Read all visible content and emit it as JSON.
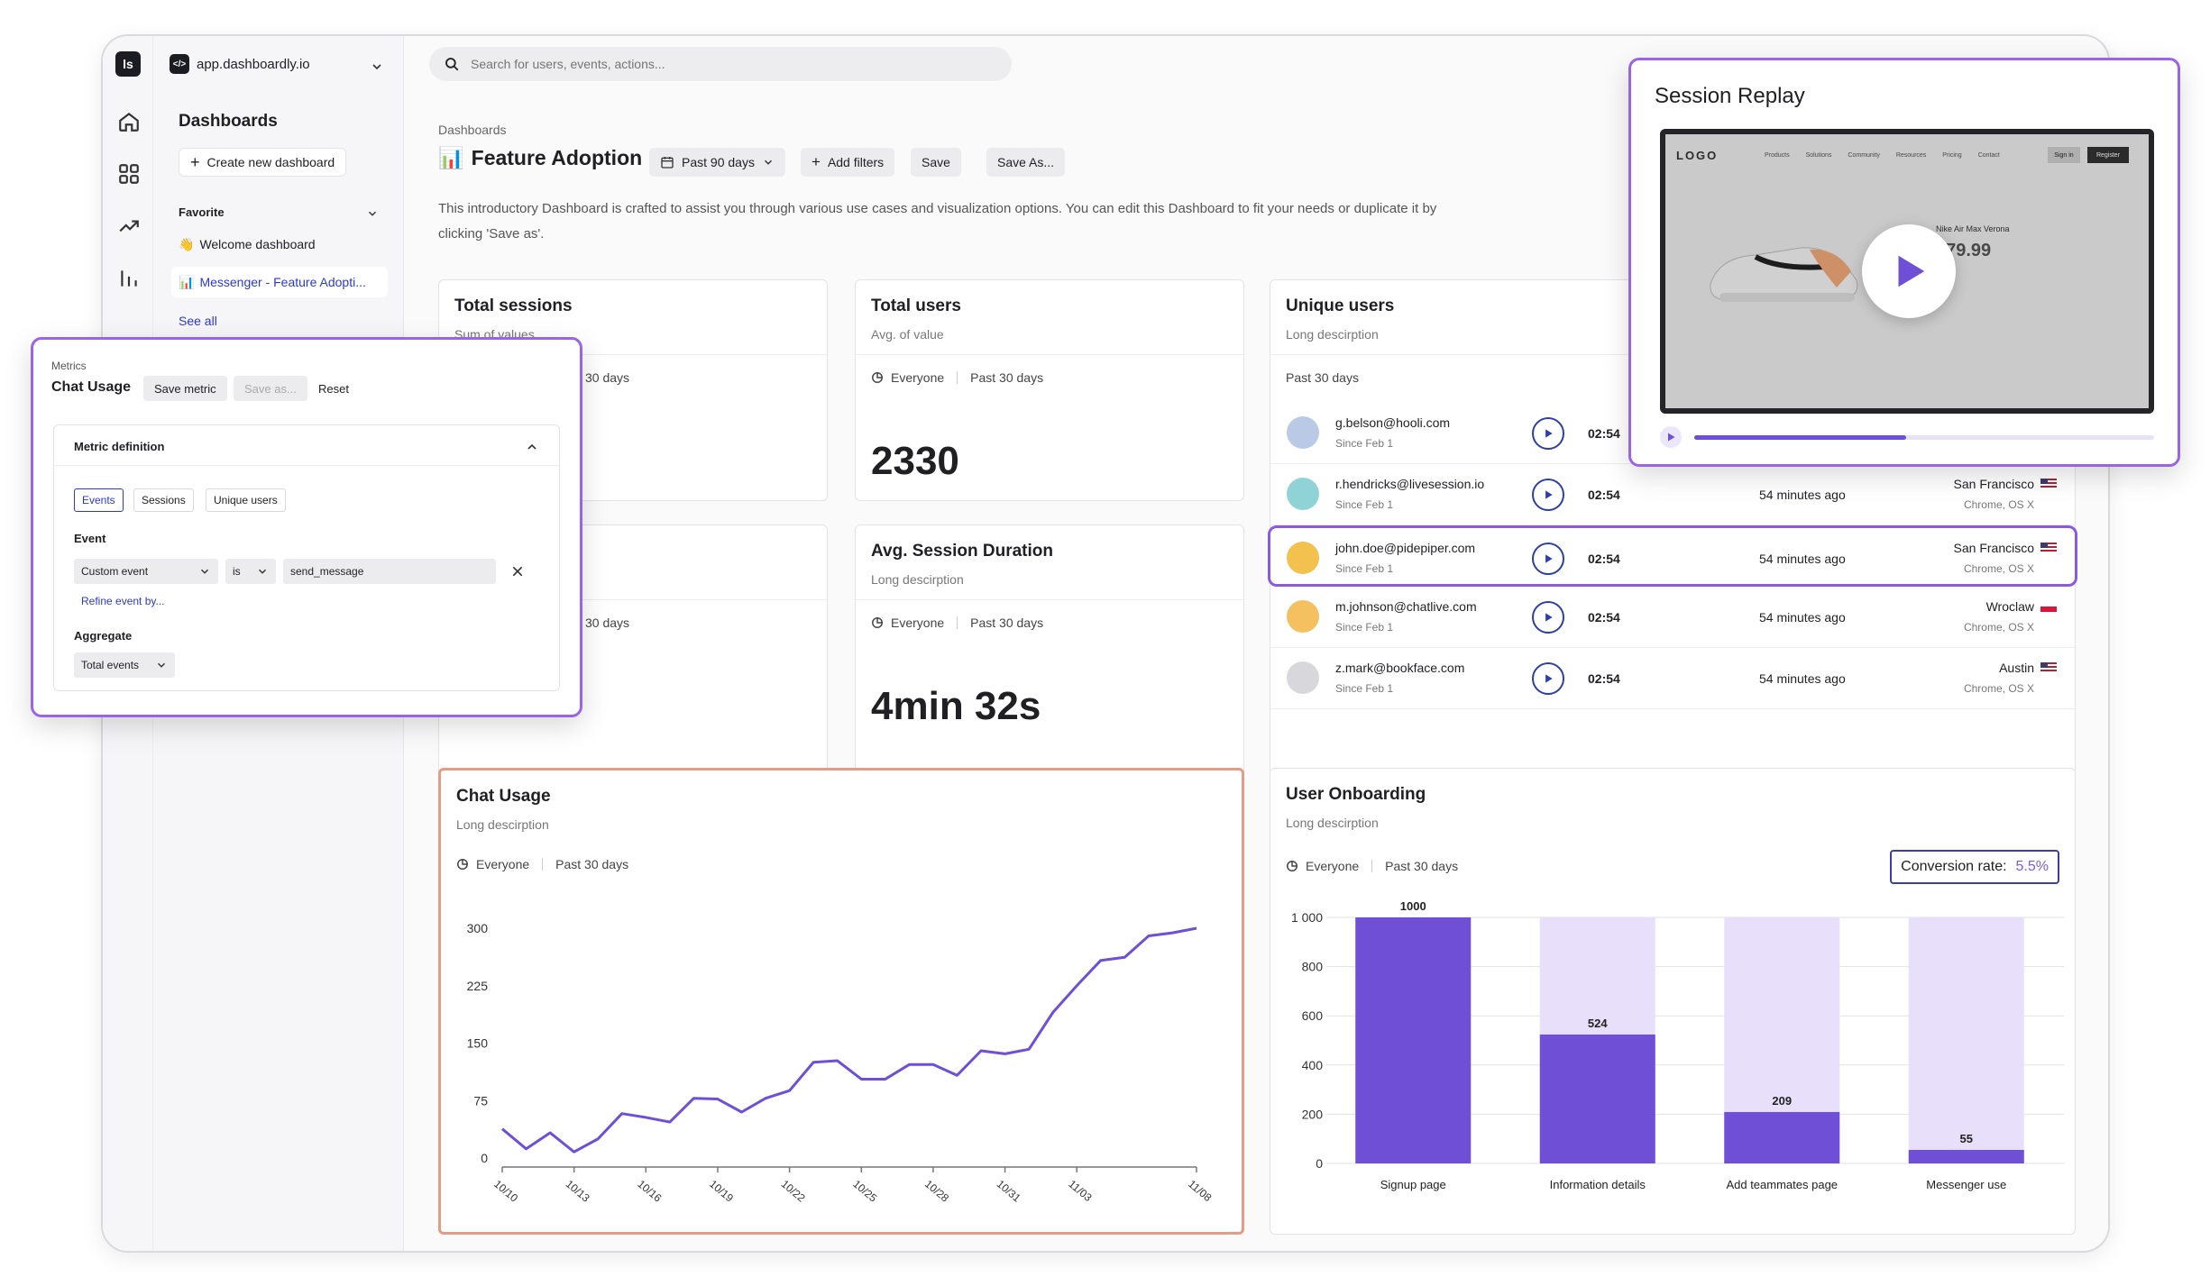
{
  "app": {
    "workspace": "app.dashboardly.io",
    "rail_logo": "ls",
    "search_placeholder": "Search for users, events, actions..."
  },
  "sidenav": {
    "title": "Dashboards",
    "create_label": "Create new dashboard",
    "favorite_label": "Favorite",
    "items": [
      {
        "emoji": "👋",
        "label": "Welcome dashboard"
      },
      {
        "emoji": "📊",
        "label": "Messenger - Feature Adopti..."
      }
    ],
    "see_all": "See all"
  },
  "page": {
    "breadcrumb": "Dashboards",
    "title_emoji": "📊",
    "title": "Feature Adoption",
    "period": "Past 90 days",
    "add_filters": "Add filters",
    "save": "Save",
    "save_as": "Save As...",
    "intro": "This introductory Dashboard is crafted to assist you through various use cases and visualization options. You can edit this Dashboard to fit your needs or duplicate it by clicking 'Save as'."
  },
  "cards": {
    "total_sessions": {
      "title": "Total sessions",
      "sub": "Sum of values",
      "period": "30 days"
    },
    "total_users": {
      "title": "Total users",
      "sub": "Avg. of value",
      "segment": "Everyone",
      "period": "Past 30 days",
      "value": "2330"
    },
    "card_left_2": {
      "period": "30 days"
    },
    "avg_session": {
      "title": "Avg. Session Duration",
      "sub": "Long descirption",
      "segment": "Everyone",
      "period": "Past 30 days",
      "value": "4min 32s"
    },
    "unique_users": {
      "title": "Unique users",
      "sub": "Long descirption",
      "period": "Past 30 days"
    },
    "chat_usage": {
      "title": "Chat Usage",
      "sub": "Long descirption",
      "segment": "Everyone",
      "period": "Past 30 days"
    },
    "onboarding": {
      "title": "User Onboarding",
      "sub": "Long descirption",
      "segment": "Everyone",
      "period": "Past 30 days",
      "conv_label": "Conversion rate:",
      "conv_value": "5.5%"
    }
  },
  "users": [
    {
      "email": "g.belson@hooli.com",
      "since": "Since Feb 1",
      "duration": "02:54",
      "ago": "",
      "location": "",
      "browser": "",
      "flag": "",
      "avatar_color": "#b9c9e6"
    },
    {
      "email": "r.hendricks@livesession.io",
      "since": "Since Feb 1",
      "duration": "02:54",
      "ago": "54 minutes ago",
      "location": "San Francisco",
      "browser": "Chrome, OS X",
      "flag": "us",
      "avatar_color": "#8fd3d6"
    },
    {
      "email": "john.doe@pidepiper.com",
      "since": "Since Feb 1",
      "duration": "02:54",
      "ago": "54 minutes ago",
      "location": "San Francisco",
      "browser": "Chrome, OS X",
      "flag": "us",
      "avatar_color": "#f2c14e"
    },
    {
      "email": "m.johnson@chatlive.com",
      "since": "Since Feb 1",
      "duration": "02:54",
      "ago": "54 minutes ago",
      "location": "Wroclaw",
      "browser": "Chrome, OS X",
      "flag": "pl",
      "avatar_color": "#f5c060"
    },
    {
      "email": "z.mark@bookface.com",
      "since": "Since Feb 1",
      "duration": "02:54",
      "ago": "54 minutes ago",
      "location": "Austin",
      "browser": "Chrome, OS X",
      "flag": "us",
      "avatar_color": "#d8d8dc"
    }
  ],
  "metrics_panel": {
    "label": "Metrics",
    "title": "Chat Usage",
    "save_metric": "Save metric",
    "save_as": "Save as...",
    "reset": "Reset",
    "definition": "Metric definition",
    "tabs": [
      "Events",
      "Sessions",
      "Unique users"
    ],
    "event_label": "Event",
    "event_type": "Custom event",
    "operator": "is",
    "event_value": "send_message",
    "refine": "Refine event by...",
    "aggregate_label": "Aggregate",
    "aggregate_value": "Total events"
  },
  "replay": {
    "title": "Session Replay",
    "site_logo": "LOGO",
    "site_nav": [
      "Products",
      "Solutions",
      "Community",
      "Resources",
      "Pricing",
      "Contact"
    ],
    "site_signin": "Sign in",
    "site_register": "Register",
    "product_name": "Nike Air Max Verona",
    "product_price": "$79.99",
    "progress": 0.46
  },
  "colors": {
    "accent": "#6e4fd6",
    "accent_light": "#e8e0fb",
    "line": "#6d4fd8",
    "link": "#2c3ac8"
  },
  "chart_data": [
    {
      "type": "line",
      "title": "Chat Usage",
      "x": [
        "10/10",
        "10/11",
        "10/12",
        "10/13",
        "10/14",
        "10/15",
        "10/16",
        "10/17",
        "10/18",
        "10/19",
        "10/20",
        "10/21",
        "10/22",
        "10/23",
        "10/24",
        "10/25",
        "10/26",
        "10/27",
        "10/28",
        "10/29",
        "10/30",
        "10/31",
        "11/01",
        "11/02",
        "11/03",
        "11/04",
        "11/05",
        "11/06",
        "11/07",
        "11/08"
      ],
      "x_ticks": [
        "10/10",
        "10/13",
        "10/16",
        "10/19",
        "10/22",
        "10/25",
        "10/28",
        "10/31",
        "11/03",
        "11/08"
      ],
      "series": [
        {
          "values": [
            38,
            12,
            33,
            8,
            25,
            58,
            53,
            47,
            78,
            77,
            60,
            78,
            88,
            125,
            127,
            103,
            103,
            122,
            122,
            108,
            140,
            136,
            142,
            190,
            225,
            258,
            262,
            290,
            294,
            300
          ]
        }
      ],
      "ylim": [
        0,
        300
      ],
      "y_ticks": [
        0,
        75,
        150,
        225,
        300
      ],
      "grid": false
    },
    {
      "type": "bar",
      "title": "User Onboarding",
      "categories": [
        "Signup page",
        "Information details",
        "Add teammates page",
        "Messenger use"
      ],
      "values": [
        1000,
        524,
        209,
        55
      ],
      "ylim": [
        0,
        1000
      ],
      "y_ticks": [
        "0",
        "200",
        "400",
        "600",
        "800",
        "1 000"
      ],
      "grid": true
    }
  ]
}
